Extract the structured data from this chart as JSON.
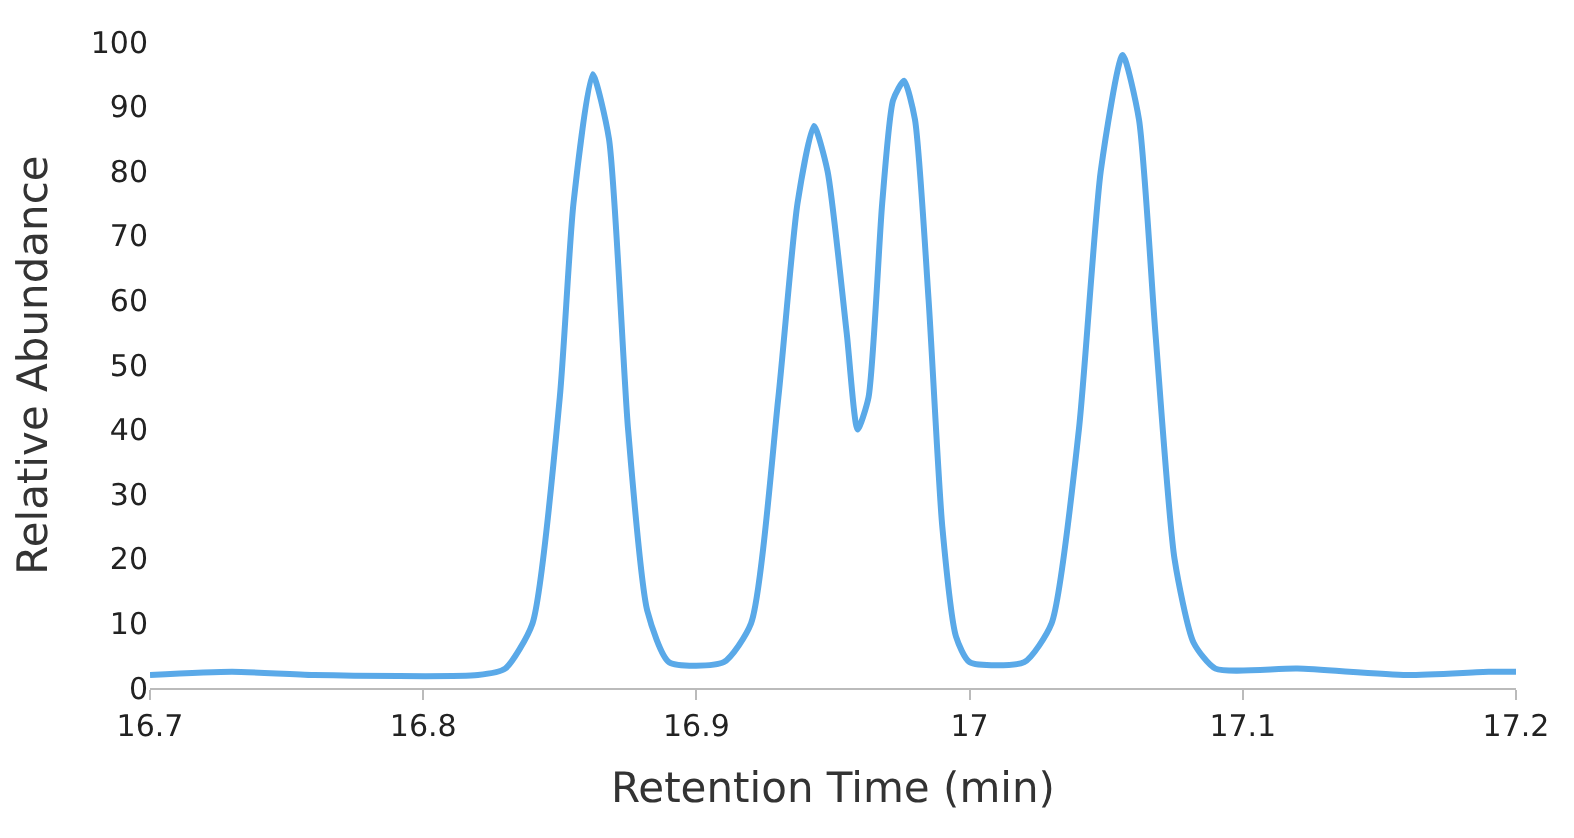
{
  "chart_data": {
    "type": "line",
    "xlabel": "Retention Time (min)",
    "ylabel": "Relative Abundance",
    "x": [
      16.7,
      16.73,
      16.76,
      16.82,
      16.83,
      16.84,
      16.85,
      16.855,
      16.862,
      16.868,
      16.875,
      16.882,
      16.89,
      16.91,
      16.92,
      16.93,
      16.937,
      16.943,
      16.948,
      16.955,
      16.959,
      16.963,
      16.968,
      16.972,
      16.976,
      16.98,
      16.985,
      16.99,
      16.995,
      17.0,
      17.02,
      17.03,
      17.04,
      17.048,
      17.056,
      17.062,
      17.068,
      17.075,
      17.082,
      17.09,
      17.12,
      17.16,
      17.19,
      17.2
    ],
    "series": [
      {
        "color": "#5aa9e8",
        "values": [
          2,
          2.5,
          2,
          2,
          3,
          10,
          45,
          75,
          95,
          85,
          40,
          12,
          4,
          4,
          10,
          45,
          75,
          87,
          80,
          55,
          40,
          45,
          75,
          91,
          94,
          88,
          60,
          25,
          8,
          4,
          4,
          10,
          40,
          80,
          98,
          88,
          55,
          20,
          7,
          3,
          3,
          2,
          2.5,
          2.5
        ]
      }
    ],
    "xlim": [
      16.7,
      17.2
    ],
    "xticks": [
      16.7,
      16.8,
      16.9,
      {
        "value": 17.0,
        "label": "17"
      },
      17.1,
      17.2
    ],
    "ylim": [
      0,
      100
    ],
    "yticks": [
      0,
      10,
      20,
      30,
      40,
      50,
      60,
      70,
      80,
      90,
      100
    ],
    "marker": "none",
    "line_style": "solid"
  }
}
